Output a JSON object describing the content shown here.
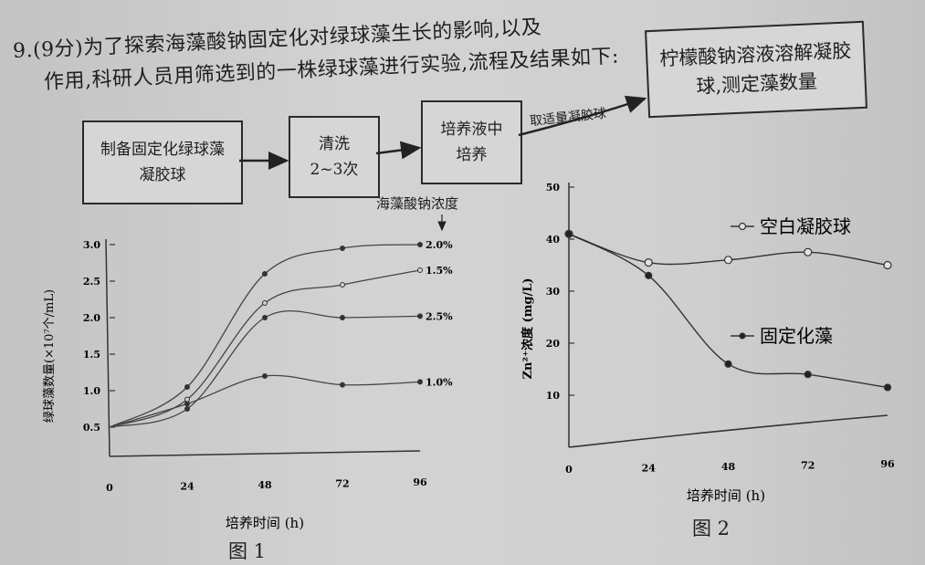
{
  "question": {
    "line1": "9.(9分)为了探索海藻酸钠固定化对绿球藻生长的影响,以及",
    "line2": "作用,科研人员用筛选到的一株绿球藻进行实验,流程及结果如下:"
  },
  "flow": {
    "step1": "制备固定化绿球藻凝胶球",
    "step2": "清洗2~3次",
    "step3": "培养液中培养",
    "arrow_label": "取适量凝胶球",
    "step4": "柠檬酸钠溶液溶解凝胶球,测定藻数量",
    "concentration_label": "海藻酸钠浓度"
  },
  "chart_data": [
    {
      "type": "line",
      "title": "图 1",
      "xlabel": "培养时间 (h)",
      "ylabel": "绿球藻数量(×10⁷个/mL)",
      "x": [
        0,
        24,
        48,
        72,
        96
      ],
      "xlim": [
        0,
        96
      ],
      "ylim": [
        0.2,
        3.0
      ],
      "xticks": [
        "0",
        "24",
        "48",
        "72",
        "96"
      ],
      "yticks": [
        "0.5",
        "1.0",
        "1.5",
        "2.0",
        "2.5",
        "3.0"
      ],
      "series": [
        {
          "name": "2.0%",
          "values": [
            0.5,
            1.05,
            2.6,
            2.95,
            3.0
          ]
        },
        {
          "name": "1.5%",
          "values": [
            0.5,
            0.88,
            2.2,
            2.45,
            2.65
          ]
        },
        {
          "name": "2.5%",
          "values": [
            0.5,
            0.75,
            2.0,
            2.0,
            2.02
          ]
        },
        {
          "name": "1.0%",
          "values": [
            0.5,
            0.82,
            1.2,
            1.08,
            1.12
          ]
        }
      ]
    },
    {
      "type": "line",
      "title": "图 2",
      "xlabel": "培养时间 (h)",
      "ylabel": "Zn²⁺浓度 (mg/L)",
      "x": [
        0,
        24,
        48,
        72,
        96
      ],
      "xlim": [
        0,
        96
      ],
      "ylim": [
        0,
        50
      ],
      "xticks": [
        "0",
        "24",
        "48",
        "72",
        "96"
      ],
      "yticks": [
        "10",
        "20",
        "30",
        "40",
        "50"
      ],
      "series": [
        {
          "name": "空白凝胶球",
          "marker": "open",
          "values": [
            41,
            35.5,
            36,
            37.5,
            35
          ]
        },
        {
          "name": "固定化藻",
          "marker": "filled",
          "values": [
            41,
            33,
            16,
            14,
            11.5
          ]
        }
      ]
    }
  ]
}
